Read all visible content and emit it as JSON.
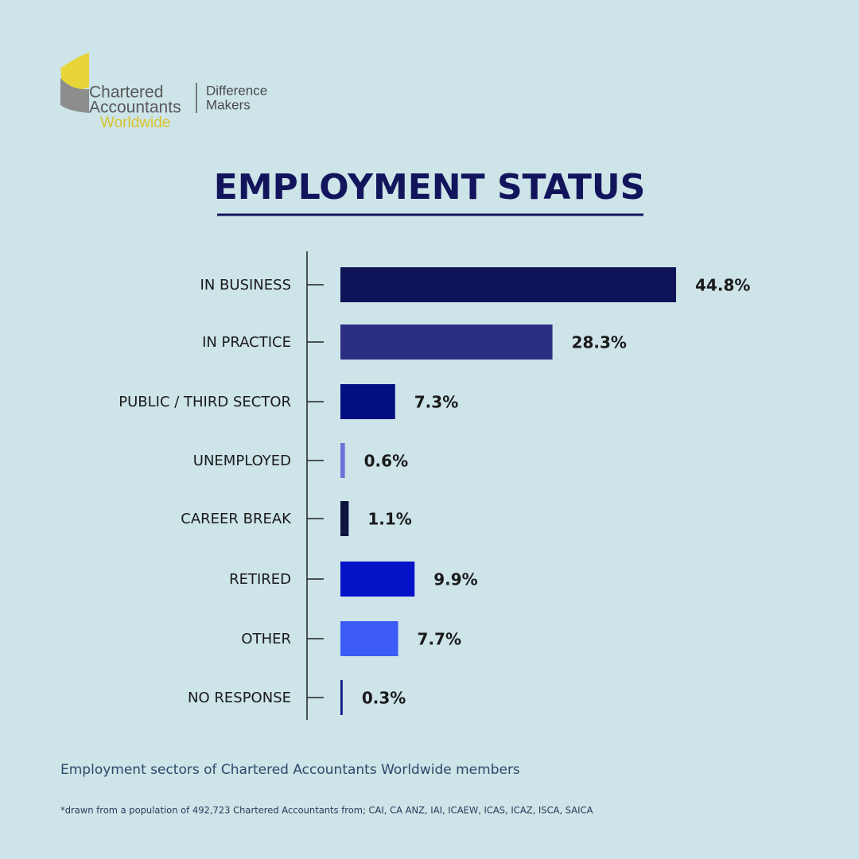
{
  "logo": {
    "line1": "Chartered",
    "line2": "Accountants",
    "line3": "Worldwide",
    "tagline1": "Difference",
    "tagline2": "Makers"
  },
  "chart_data": {
    "type": "bar",
    "orientation": "horizontal",
    "title": "EMPLOYMENT STATUS",
    "categories": [
      "IN BUSINESS",
      "IN PRACTICE",
      "PUBLIC / THIRD SECTOR",
      "UNEMPLOYED",
      "CAREER BREAK",
      "RETIRED",
      "OTHER",
      "NO RESPONSE"
    ],
    "values": [
      44.8,
      28.3,
      7.3,
      0.6,
      1.1,
      9.9,
      7.7,
      0.3
    ],
    "value_labels": [
      "44.8%",
      "28.3%",
      "7.3%",
      "0.6%",
      "1.1%",
      "9.9%",
      "7.7%",
      "0.3%"
    ],
    "colors": [
      "#0f1459",
      "#2b2d82",
      "#020f80",
      "#6e72d8",
      "#0e1340",
      "#0412c8",
      "#3d5bf7",
      "#0f1b8a"
    ],
    "caption": "Employment sectors of Chartered Accountants Worldwide members",
    "footnote": "*drawn from a population of 492,723 Chartered Accountants from; CAI, CA ANZ, IAI, ICAEW, ICAS, ICAZ, ISCA, SAICA"
  }
}
